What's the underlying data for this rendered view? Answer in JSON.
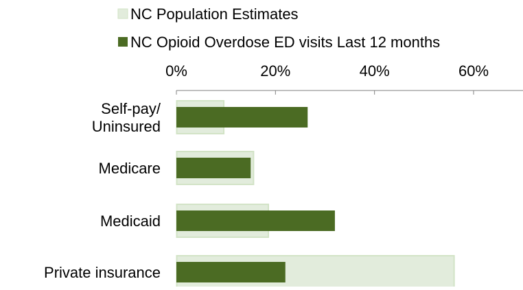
{
  "chart_data": {
    "type": "bar",
    "orientation": "horizontal",
    "overlap": true,
    "categories": [
      "Self-pay/\nUninsured",
      "Medicare",
      "Medicaid",
      "Private insurance"
    ],
    "series": [
      {
        "name": "NC Population Estimates",
        "values": [
          9.5,
          15.5,
          18.5,
          56
        ],
        "color": "#e2ecdc",
        "stroke": "#d2e3c6"
      },
      {
        "name": "NC Opioid Overdose ED visits Last 12 months",
        "values": [
          26.5,
          15,
          32,
          22
        ],
        "color": "#4b6b23"
      }
    ],
    "xlim": [
      0,
      70
    ],
    "xticks": [
      0,
      20,
      40,
      60
    ],
    "tick_format": "percent",
    "axis_position": "top",
    "grid": false,
    "legend_position": "top"
  }
}
